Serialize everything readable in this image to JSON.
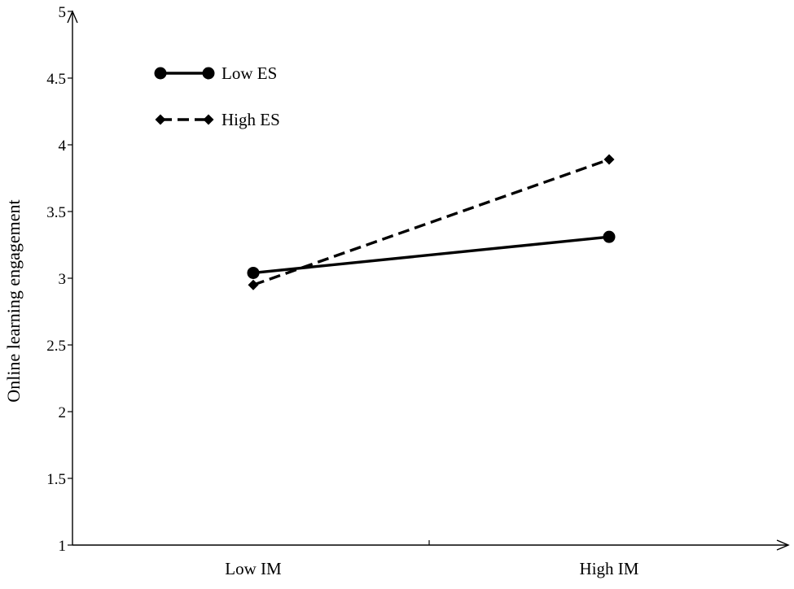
{
  "chart_data": {
    "type": "line",
    "title": "",
    "xlabel": "",
    "ylabel": "Online learning engagement",
    "categories": [
      "Low IM",
      "High IM"
    ],
    "ylim": [
      1,
      5
    ],
    "yticks": [
      "1",
      "1.5",
      "2",
      "2.5",
      "3",
      "3.5",
      "4",
      "4.5",
      "5"
    ],
    "grid": false,
    "legend_position": "top-left",
    "series": [
      {
        "name": "Low ES",
        "values": [
          3.04,
          3.31
        ],
        "line_style": "solid",
        "marker": "circle",
        "color": "#000000"
      },
      {
        "name": "High ES",
        "values": [
          2.95,
          3.89
        ],
        "line_style": "dashed",
        "marker": "diamond",
        "color": "#000000"
      }
    ]
  }
}
